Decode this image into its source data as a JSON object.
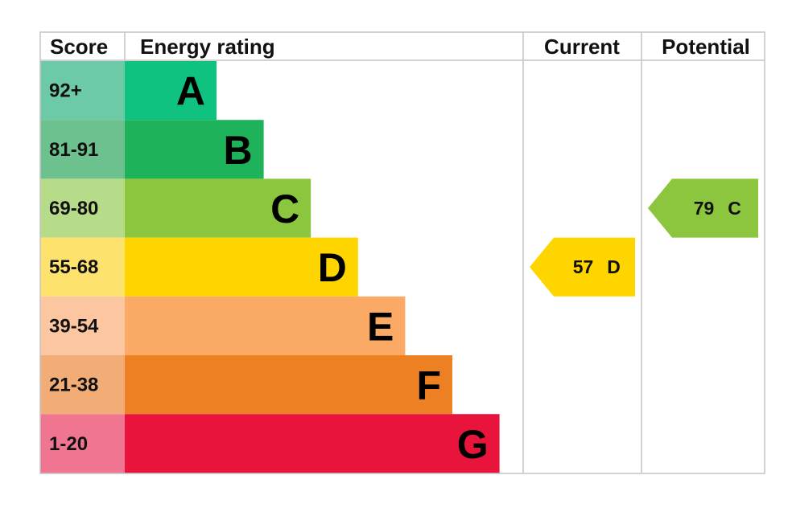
{
  "chart_data": {
    "type": "bar",
    "headers": {
      "score": "Score",
      "rating": "Energy rating",
      "current": "Current",
      "potential": "Potential"
    },
    "bands": [
      {
        "score": "92+",
        "letter": "A",
        "color": "#0fc27f",
        "score_color": "#6ccaa6"
      },
      {
        "score": "81-91",
        "letter": "B",
        "color": "#1eb25a",
        "score_color": "#6cc18f"
      },
      {
        "score": "69-80",
        "letter": "C",
        "color": "#8cc63f",
        "score_color": "#b6dc8a"
      },
      {
        "score": "55-68",
        "letter": "D",
        "color": "#ffd500",
        "score_color": "#fde36d"
      },
      {
        "score": "39-54",
        "letter": "E",
        "color": "#fbaa66",
        "score_color": "#fcc7a0"
      },
      {
        "score": "21-38",
        "letter": "F",
        "color": "#ee8024",
        "score_color": "#f1ad75"
      },
      {
        "score": "1-20",
        "letter": "G",
        "color": "#e8143c",
        "score_color": "#ef7591"
      }
    ],
    "current": {
      "value": 57,
      "letter": "D",
      "color": "#ffd500"
    },
    "potential": {
      "value": 79,
      "letter": "C",
      "color": "#8cc63f"
    }
  }
}
